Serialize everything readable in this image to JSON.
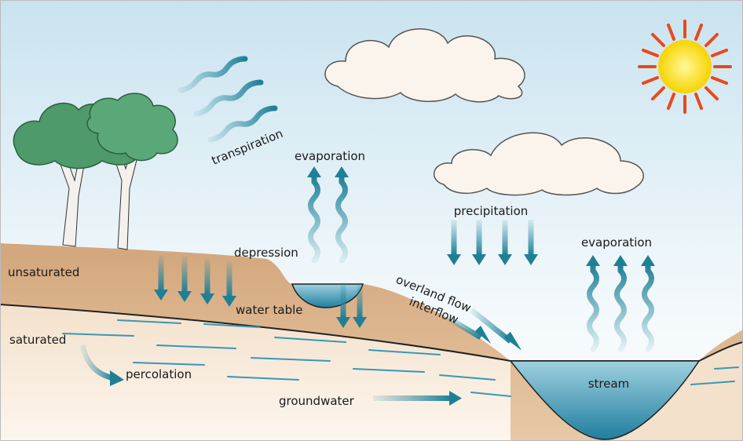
{
  "labels": [
    "transpiration",
    "evaporation",
    "depression",
    "unsaturated",
    "water table",
    "overland flow",
    "interflow",
    "saturated",
    "percolation",
    "groundwater",
    "precipitation",
    "evaporation",
    "stream"
  ]
}
